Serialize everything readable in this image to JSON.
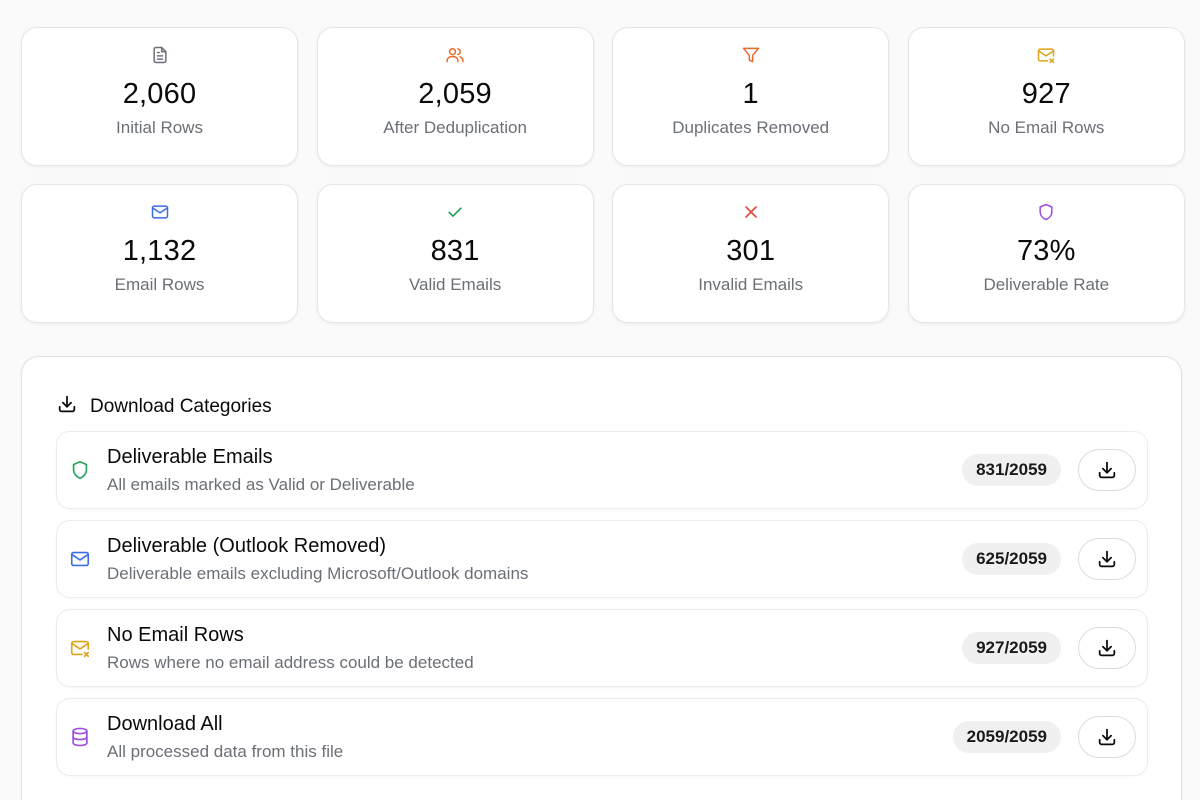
{
  "stats": [
    {
      "value": "2,060",
      "label": "Initial Rows",
      "icon": "document-icon",
      "color": "#6b6f76"
    },
    {
      "value": "2,059",
      "label": "After Deduplication",
      "icon": "users-icon",
      "color": "#ea6a2a"
    },
    {
      "value": "1",
      "label": "Duplicates Removed",
      "icon": "filter-icon",
      "color": "#ea6a2a"
    },
    {
      "value": "927",
      "label": "No Email Rows",
      "icon": "mail-x-icon",
      "color": "#e0a21a"
    },
    {
      "value": "1,132",
      "label": "Email Rows",
      "icon": "mail-icon",
      "color": "#3b6fe6"
    },
    {
      "value": "831",
      "label": "Valid Emails",
      "icon": "check-icon",
      "color": "#22a35a"
    },
    {
      "value": "301",
      "label": "Invalid Emails",
      "icon": "x-icon",
      "color": "#e5483f"
    },
    {
      "value": "73%",
      "label": "Deliverable Rate",
      "icon": "shield-icon",
      "color": "#9b4de0"
    }
  ],
  "downloads": {
    "title": "Download Categories",
    "items": [
      {
        "title": "Deliverable Emails",
        "description": "All emails marked as Valid or Deliverable",
        "count": "831/2059",
        "icon": "shield-icon",
        "color": "#22a35a"
      },
      {
        "title": "Deliverable (Outlook Removed)",
        "description": "Deliverable emails excluding Microsoft/Outlook domains",
        "count": "625/2059",
        "icon": "mail-icon",
        "color": "#3b6fe6"
      },
      {
        "title": "No Email Rows",
        "description": "Rows where no email address could be detected",
        "count": "927/2059",
        "icon": "mail-x-icon",
        "color": "#e0a21a"
      },
      {
        "title": "Download All",
        "description": "All processed data from this file",
        "count": "2059/2059",
        "icon": "database-icon",
        "color": "#9b4de0"
      }
    ]
  }
}
